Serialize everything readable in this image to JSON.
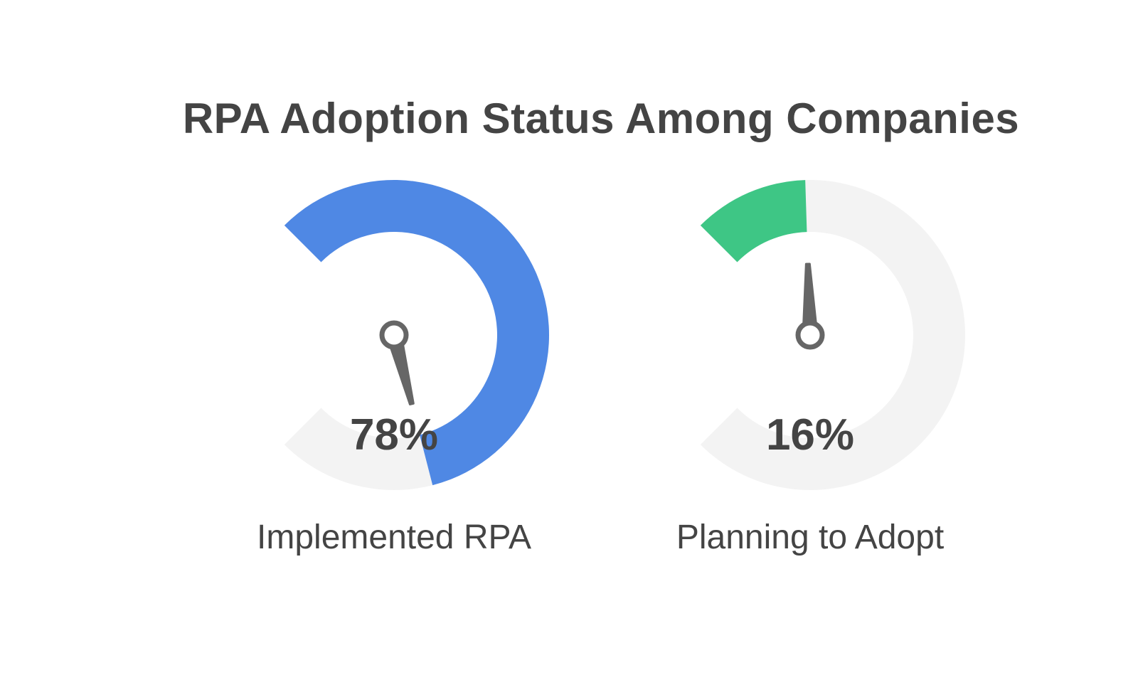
{
  "chart_data": {
    "type": "gauge",
    "title": "RPA Adoption Status Among Companies",
    "unit": "%",
    "range": [
      0,
      100
    ],
    "track_color": "#f3f3f3",
    "needle_color": "#666666",
    "gauges": [
      {
        "label": "Implemented RPA",
        "value": 78,
        "value_text": "78%",
        "color": "#4f88e4"
      },
      {
        "label": "Planning to Adopt",
        "value": 16,
        "value_text": "16%",
        "color": "#3ec685"
      }
    ]
  }
}
